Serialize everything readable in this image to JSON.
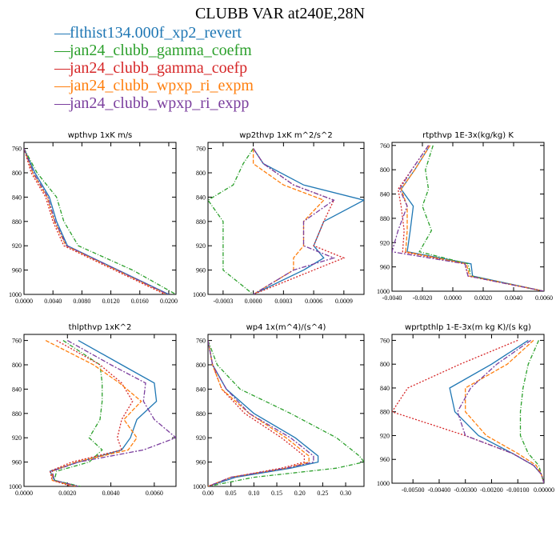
{
  "title": "CLUBB VAR at240E,28N",
  "series": [
    {
      "name": "flthist134.000f_xp2_revert",
      "color": "#1f77b4",
      "dash": ""
    },
    {
      "name": "jan24_clubb_gamma_coefm",
      "color": "#2ca02c",
      "dash": "5,2,1,2"
    },
    {
      "name": "jan24_clubb_gamma_coefp",
      "color": "#d62728",
      "dash": "2,2"
    },
    {
      "name": "jan24_clubb_wpxp_ri_expm",
      "color": "#ff7f0e",
      "dash": "5,2"
    },
    {
      "name": "jan24_clubb_wpxp_ri_expp",
      "color": "#7b3f9e",
      "dash": "6,2,2,2"
    }
  ],
  "chart_data": [
    {
      "type": "line",
      "title": "wpthvp  1xK m/s",
      "xlim": [
        0,
        0.021
      ],
      "ylim": [
        750,
        1000
      ],
      "xticks": [
        0,
        0.004,
        0.008,
        0.012,
        0.016,
        0.02
      ],
      "xtick_labels": [
        "0.0000",
        "0.0040",
        "0.0080",
        "0.0120",
        "0.0160",
        "0.0200"
      ],
      "yticks": [
        760,
        800,
        840,
        880,
        920,
        960,
        1000
      ],
      "y": [
        760,
        800,
        840,
        880,
        920,
        960,
        1000
      ],
      "series": [
        {
          "x": [
            0.0,
            0.0015,
            0.0035,
            0.0045,
            0.006,
            0.013,
            0.02
          ]
        },
        {
          "x": [
            0.0,
            0.0018,
            0.0045,
            0.0055,
            0.0075,
            0.015,
            0.021
          ]
        },
        {
          "x": [
            0.0,
            0.001,
            0.003,
            0.004,
            0.0055,
            0.0125,
            0.0195
          ]
        },
        {
          "x": [
            0.0,
            0.0012,
            0.0032,
            0.0042,
            0.0058,
            0.0128,
            0.0198
          ]
        },
        {
          "x": [
            0.0,
            0.0013,
            0.0033,
            0.0043,
            0.0059,
            0.0129,
            0.0199
          ]
        }
      ]
    },
    {
      "type": "line",
      "title": "wp2thvp  1xK m^2/s^2",
      "xlim": [
        -0.00045,
        0.0011
      ],
      "ylim": [
        750,
        1000
      ],
      "xticks": [
        -0.0003,
        0,
        0.0003,
        0.0006,
        0.0009
      ],
      "xtick_labels": [
        "-0.0003",
        "0.0000",
        "0.0003",
        "0.0006",
        "0.0009"
      ],
      "yticks": [
        760,
        800,
        840,
        880,
        920,
        960,
        1000
      ],
      "y": [
        760,
        785,
        820,
        845,
        880,
        920,
        940,
        960,
        1000
      ],
      "series": [
        {
          "x": [
            0.0,
            0.0001,
            0.0005,
            0.0011,
            0.0007,
            0.0006,
            0.0007,
            0.0005,
            0.0
          ]
        },
        {
          "x": [
            0.0,
            -0.0001,
            -0.0002,
            -0.00045,
            -0.0003,
            -0.0003,
            -0.0003,
            -0.0003,
            0.0
          ]
        },
        {
          "x": [
            0.0,
            0.0001,
            0.0004,
            0.0008,
            0.0007,
            0.0006,
            0.0009,
            0.0006,
            0.0
          ]
        },
        {
          "x": [
            0.0,
            0.0,
            0.0003,
            0.0007,
            0.0005,
            0.0005,
            0.0004,
            0.0004,
            0.0
          ]
        },
        {
          "x": [
            0.0,
            0.0001,
            0.0004,
            0.0008,
            0.0005,
            0.0005,
            0.0008,
            0.0004,
            0.0
          ]
        }
      ]
    },
    {
      "type": "line",
      "title": "rtpthvp  1E-3x(kg/kg) K",
      "xlim": [
        -0.004,
        0.006
      ],
      "ylim": [
        755,
        1000
      ],
      "xticks": [
        -0.004,
        -0.002,
        0,
        0.002,
        0.004,
        0.006
      ],
      "xtick_labels": [
        "-0.0040",
        "-0.0020",
        "0.0000",
        "0.0020",
        "0.0040",
        "0.0060"
      ],
      "yticks": [
        760,
        800,
        840,
        880,
        920,
        960,
        1000
      ],
      "y": [
        760,
        800,
        832,
        860,
        900,
        935,
        955,
        975,
        1000
      ],
      "series": [
        {
          "x": [
            -0.0015,
            -0.0025,
            -0.0034,
            -0.0026,
            -0.0028,
            -0.003,
            0.0012,
            0.0013,
            0.006
          ]
        },
        {
          "x": [
            -0.0013,
            -0.0018,
            -0.0016,
            -0.002,
            -0.0014,
            -0.0022,
            0.001,
            0.0012,
            0.006
          ]
        },
        {
          "x": [
            -0.0016,
            -0.0027,
            -0.0036,
            -0.0034,
            -0.0032,
            -0.0033,
            0.0008,
            0.001,
            0.006
          ]
        },
        {
          "x": [
            -0.0015,
            -0.0025,
            -0.0034,
            -0.003,
            -0.003,
            -0.0031,
            0.0009,
            0.0011,
            0.006
          ]
        },
        {
          "x": [
            -0.0016,
            -0.0027,
            -0.0035,
            -0.003,
            -0.0036,
            -0.004,
            0.0008,
            0.001,
            0.006
          ]
        }
      ]
    },
    {
      "type": "line",
      "title": "thlpthvp  1xK^2",
      "xlim": [
        0,
        0.007
      ],
      "ylim": [
        750,
        1000
      ],
      "xticks": [
        0,
        0.002,
        0.004,
        0.006
      ],
      "xtick_labels": [
        "0.0000",
        "0.0020",
        "0.0040",
        "0.0060"
      ],
      "yticks": [
        760,
        800,
        840,
        880,
        920,
        960,
        1000
      ],
      "y": [
        760,
        800,
        830,
        860,
        890,
        920,
        940,
        960,
        975,
        990,
        1000
      ],
      "series": [
        {
          "x": [
            0.0025,
            0.0045,
            0.006,
            0.0061,
            0.0052,
            0.0049,
            0.0045,
            0.0025,
            0.0012,
            0.0014,
            0.0025
          ]
        },
        {
          "x": [
            0.0018,
            0.0035,
            0.0036,
            0.0036,
            0.0035,
            0.003,
            0.0036,
            0.003,
            0.0015,
            0.0014,
            0.0026
          ]
        },
        {
          "x": [
            0.0015,
            0.0035,
            0.0045,
            0.005,
            0.0045,
            0.0043,
            0.0045,
            0.0022,
            0.0012,
            0.0013,
            0.0022
          ]
        },
        {
          "x": [
            0.001,
            0.0032,
            0.0044,
            0.0054,
            0.0046,
            0.0052,
            0.0048,
            0.0024,
            0.0013,
            0.0013,
            0.0024
          ]
        },
        {
          "x": [
            0.002,
            0.004,
            0.0056,
            0.0055,
            0.006,
            0.007,
            0.0055,
            0.0025,
            0.0013,
            0.0014,
            0.0025
          ]
        }
      ]
    },
    {
      "type": "line",
      "title": "wp4  1x(m^4)/(s^4)",
      "xlim": [
        0,
        0.34
      ],
      "ylim": [
        750,
        1000
      ],
      "xticks": [
        0,
        0.05,
        0.1,
        0.15,
        0.2,
        0.25,
        0.3
      ],
      "xtick_labels": [
        "0.00",
        "0.05",
        "0.10",
        "0.15",
        "0.20",
        "0.25",
        "0.30"
      ],
      "yticks": [
        760,
        800,
        840,
        880,
        920,
        960,
        1000
      ],
      "y": [
        760,
        800,
        840,
        880,
        920,
        950,
        960,
        970,
        985,
        1000
      ],
      "series": [
        {
          "x": [
            0.0,
            0.01,
            0.04,
            0.1,
            0.19,
            0.24,
            0.24,
            0.18,
            0.06,
            0.0
          ]
        },
        {
          "x": [
            0.0,
            0.02,
            0.07,
            0.18,
            0.28,
            0.33,
            0.34,
            0.28,
            0.1,
            0.0
          ]
        },
        {
          "x": [
            0.0,
            0.01,
            0.03,
            0.08,
            0.16,
            0.21,
            0.21,
            0.16,
            0.05,
            0.0
          ]
        },
        {
          "x": [
            0.0,
            0.01,
            0.03,
            0.09,
            0.17,
            0.22,
            0.22,
            0.17,
            0.05,
            0.0
          ]
        },
        {
          "x": [
            0.0,
            0.01,
            0.04,
            0.09,
            0.18,
            0.23,
            0.23,
            0.17,
            0.05,
            0.0
          ]
        }
      ]
    },
    {
      "type": "line",
      "title": "wprtpthlp  1-E-3x(m kg K)/(s kg)",
      "xlim": [
        -0.0058,
        0
      ],
      "ylim": [
        750,
        1000
      ],
      "xticks": [
        -0.005,
        -0.004,
        -0.003,
        -0.002,
        -0.001,
        0
      ],
      "xtick_labels": [
        "-0.00500",
        "-0.00400",
        "-0.00300",
        "-0.00200",
        "-0.00100",
        "0.00000"
      ],
      "yticks": [
        760,
        800,
        840,
        880,
        920,
        960,
        1000
      ],
      "y": [
        760,
        800,
        840,
        880,
        920,
        950,
        970,
        985,
        1000
      ],
      "series": [
        {
          "x": [
            -0.0006,
            -0.002,
            -0.0036,
            -0.0034,
            -0.0025,
            -0.0012,
            -0.0004,
            -0.0001,
            0.0
          ]
        },
        {
          "x": [
            -0.0002,
            -0.0006,
            -0.0008,
            -0.0009,
            -0.0009,
            -0.0006,
            -0.0002,
            -0.0001,
            0.0
          ]
        },
        {
          "x": [
            -0.001,
            -0.0032,
            -0.0052,
            -0.0058,
            -0.003,
            -0.0012,
            -0.0004,
            -0.0001,
            0.0
          ]
        },
        {
          "x": [
            -0.0004,
            -0.0014,
            -0.003,
            -0.003,
            -0.0022,
            -0.001,
            -0.0003,
            -0.0001,
            0.0
          ]
        },
        {
          "x": [
            -0.0005,
            -0.0018,
            -0.0028,
            -0.0033,
            -0.003,
            -0.0012,
            -0.0004,
            -0.0001,
            0.0
          ]
        }
      ]
    }
  ]
}
